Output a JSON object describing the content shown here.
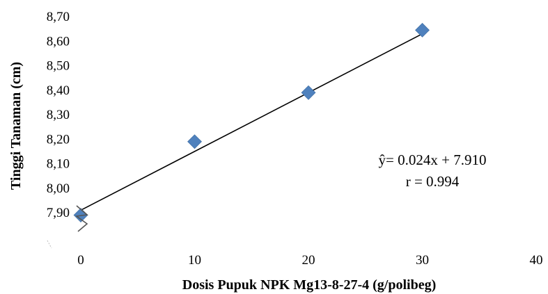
{
  "chart_data": {
    "type": "scatter",
    "title": "",
    "xlabel": "Dosis Pupuk NPK Mg13-8-27-4  (g/polibeg)",
    "ylabel": "Tinggi Tanaman  (cm)",
    "xlim": [
      0,
      40
    ],
    "ylim": [
      7.8,
      8.7
    ],
    "x_ticks": [
      "0",
      "10",
      "20",
      "30",
      "40"
    ],
    "x_tick_values": [
      0,
      10,
      20,
      30,
      40
    ],
    "y_ticks": [
      "7,90",
      "8,00",
      "8,10",
      "8,20",
      "8,30",
      "8,40",
      "8,50",
      "8,60",
      "8,70"
    ],
    "y_tick_values": [
      7.9,
      8.0,
      8.1,
      8.2,
      8.3,
      8.4,
      8.5,
      8.6,
      8.7
    ],
    "series": [
      {
        "x": [
          0,
          10,
          20,
          30
        ],
        "y": [
          7.89,
          8.19,
          8.39,
          8.645
        ],
        "marker": "diamond",
        "color": "#4f81bd"
      }
    ],
    "trendline": {
      "slope": 0.024,
      "intercept": 7.91,
      "x_range": [
        0,
        30
      ],
      "color": "#000000"
    },
    "annotations": {
      "equation": "ŷ= 0.024x + 7.910",
      "r": "r = 0.994"
    },
    "axis_break": true,
    "grid": false,
    "legend": "none"
  }
}
